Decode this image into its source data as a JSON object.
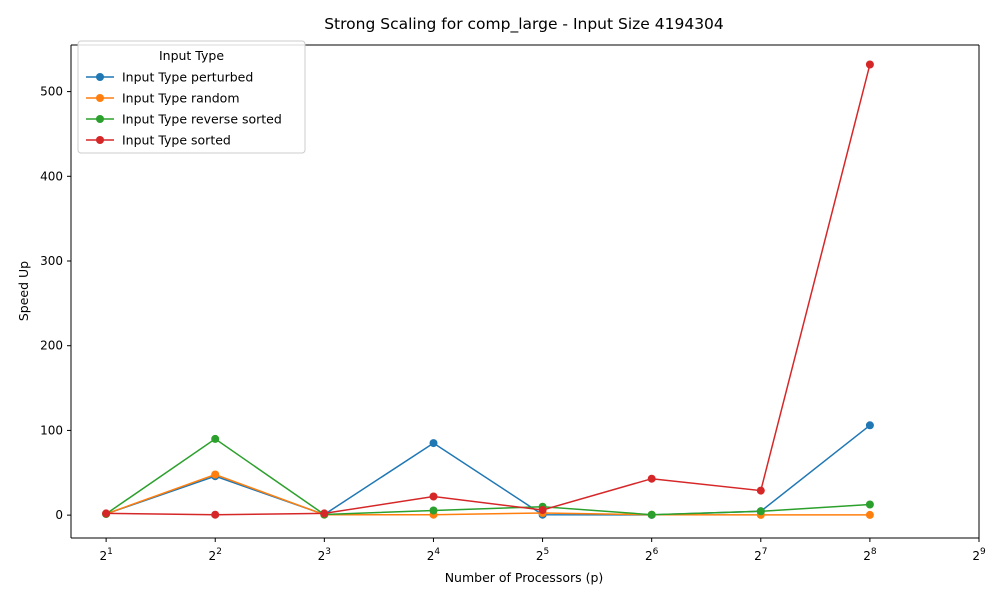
{
  "chart_data": {
    "type": "line",
    "title": "Strong Scaling for comp_large - Input Size 4194304",
    "xlabel": "Number of Processors (p)",
    "ylabel": "Speed Up",
    "x_scale": "log2",
    "x": [
      2,
      4,
      8,
      16,
      32,
      64,
      128,
      256
    ],
    "x_ticks": [
      2,
      4,
      8,
      16,
      32,
      64,
      128,
      256,
      512
    ],
    "x_tick_exponents": [
      "1",
      "2",
      "3",
      "4",
      "5",
      "6",
      "7",
      "8",
      "9"
    ],
    "x_tick_base": "2",
    "xlim": [
      1.6,
      512
    ],
    "ylim": [
      -27,
      555
    ],
    "y_ticks": [
      0,
      100,
      200,
      300,
      400,
      500
    ],
    "grid": false,
    "legend": {
      "title": "Input Type",
      "placement": "top-left"
    },
    "series": [
      {
        "name": "Input Type perturbed",
        "color": "#1f77b4",
        "values": [
          1.5,
          46,
          0.8,
          85,
          0.5,
          0.3,
          4.5,
          106
        ]
      },
      {
        "name": "Input Type random",
        "color": "#ff7f0e",
        "values": [
          1.5,
          48,
          0.5,
          0.5,
          2.5,
          0.5,
          0.3,
          0.3
        ]
      },
      {
        "name": "Input Type reverse sorted",
        "color": "#2ca02c",
        "values": [
          1.5,
          90,
          0.8,
          5.5,
          10,
          0.5,
          4.5,
          12.5
        ]
      },
      {
        "name": "Input Type sorted",
        "color": "#d62728",
        "values": [
          2,
          0.5,
          2,
          22,
          6,
          43,
          29,
          532
        ]
      }
    ]
  }
}
